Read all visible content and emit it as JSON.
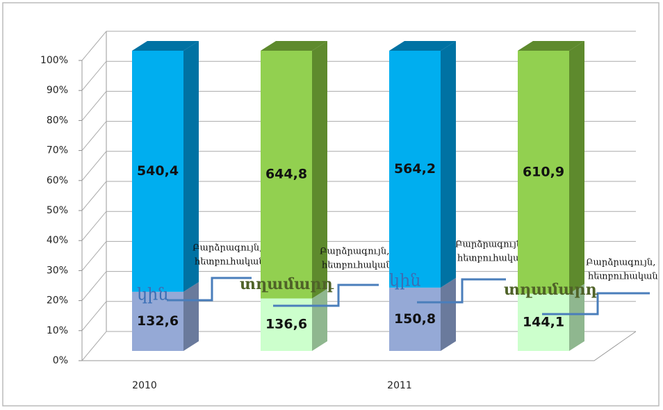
{
  "chart_data": {
    "type": "stacked-percent-bar-3d",
    "ylim": [
      0,
      100
    ],
    "yticks": [
      {
        "value": 0,
        "label": "0%"
      },
      {
        "value": 10,
        "label": "10%"
      },
      {
        "value": 20,
        "label": "20%"
      },
      {
        "value": 30,
        "label": "30%"
      },
      {
        "value": 40,
        "label": "40%"
      },
      {
        "value": 50,
        "label": "50%"
      },
      {
        "value": 60,
        "label": "60%"
      },
      {
        "value": 70,
        "label": "70%"
      },
      {
        "value": 80,
        "label": "80%"
      },
      {
        "value": 90,
        "label": "90%"
      },
      {
        "value": 100,
        "label": "100%"
      }
    ],
    "grid": true,
    "categories": [
      "2010",
      "2011"
    ],
    "annotation": [
      "Բարձրագույն,",
      "հետբուհական"
    ],
    "series": [
      {
        "name": "կին",
        "bottom": {
          "values": [
            132.6,
            150.8
          ],
          "value_labels": [
            "132,6",
            "150,8"
          ],
          "color": "#95a9d6",
          "side": "#6a7a9c"
        },
        "top": {
          "values": [
            540.4,
            564.2
          ],
          "value_labels": [
            "540,4",
            "564,2"
          ],
          "color": "#00aeef",
          "side": "#0072a3"
        }
      },
      {
        "name": "տղամարդ",
        "bottom": {
          "values": [
            136.6,
            144.1
          ],
          "value_labels": [
            "136,6",
            "144,1"
          ],
          "color": "#ccffcc",
          "side": "#8fb78f"
        },
        "top": {
          "values": [
            644.8,
            610.9
          ],
          "value_labels": [
            "644,8",
            "610,9"
          ],
          "color": "#92d050",
          "side": "#5e8a2d"
        }
      }
    ]
  }
}
